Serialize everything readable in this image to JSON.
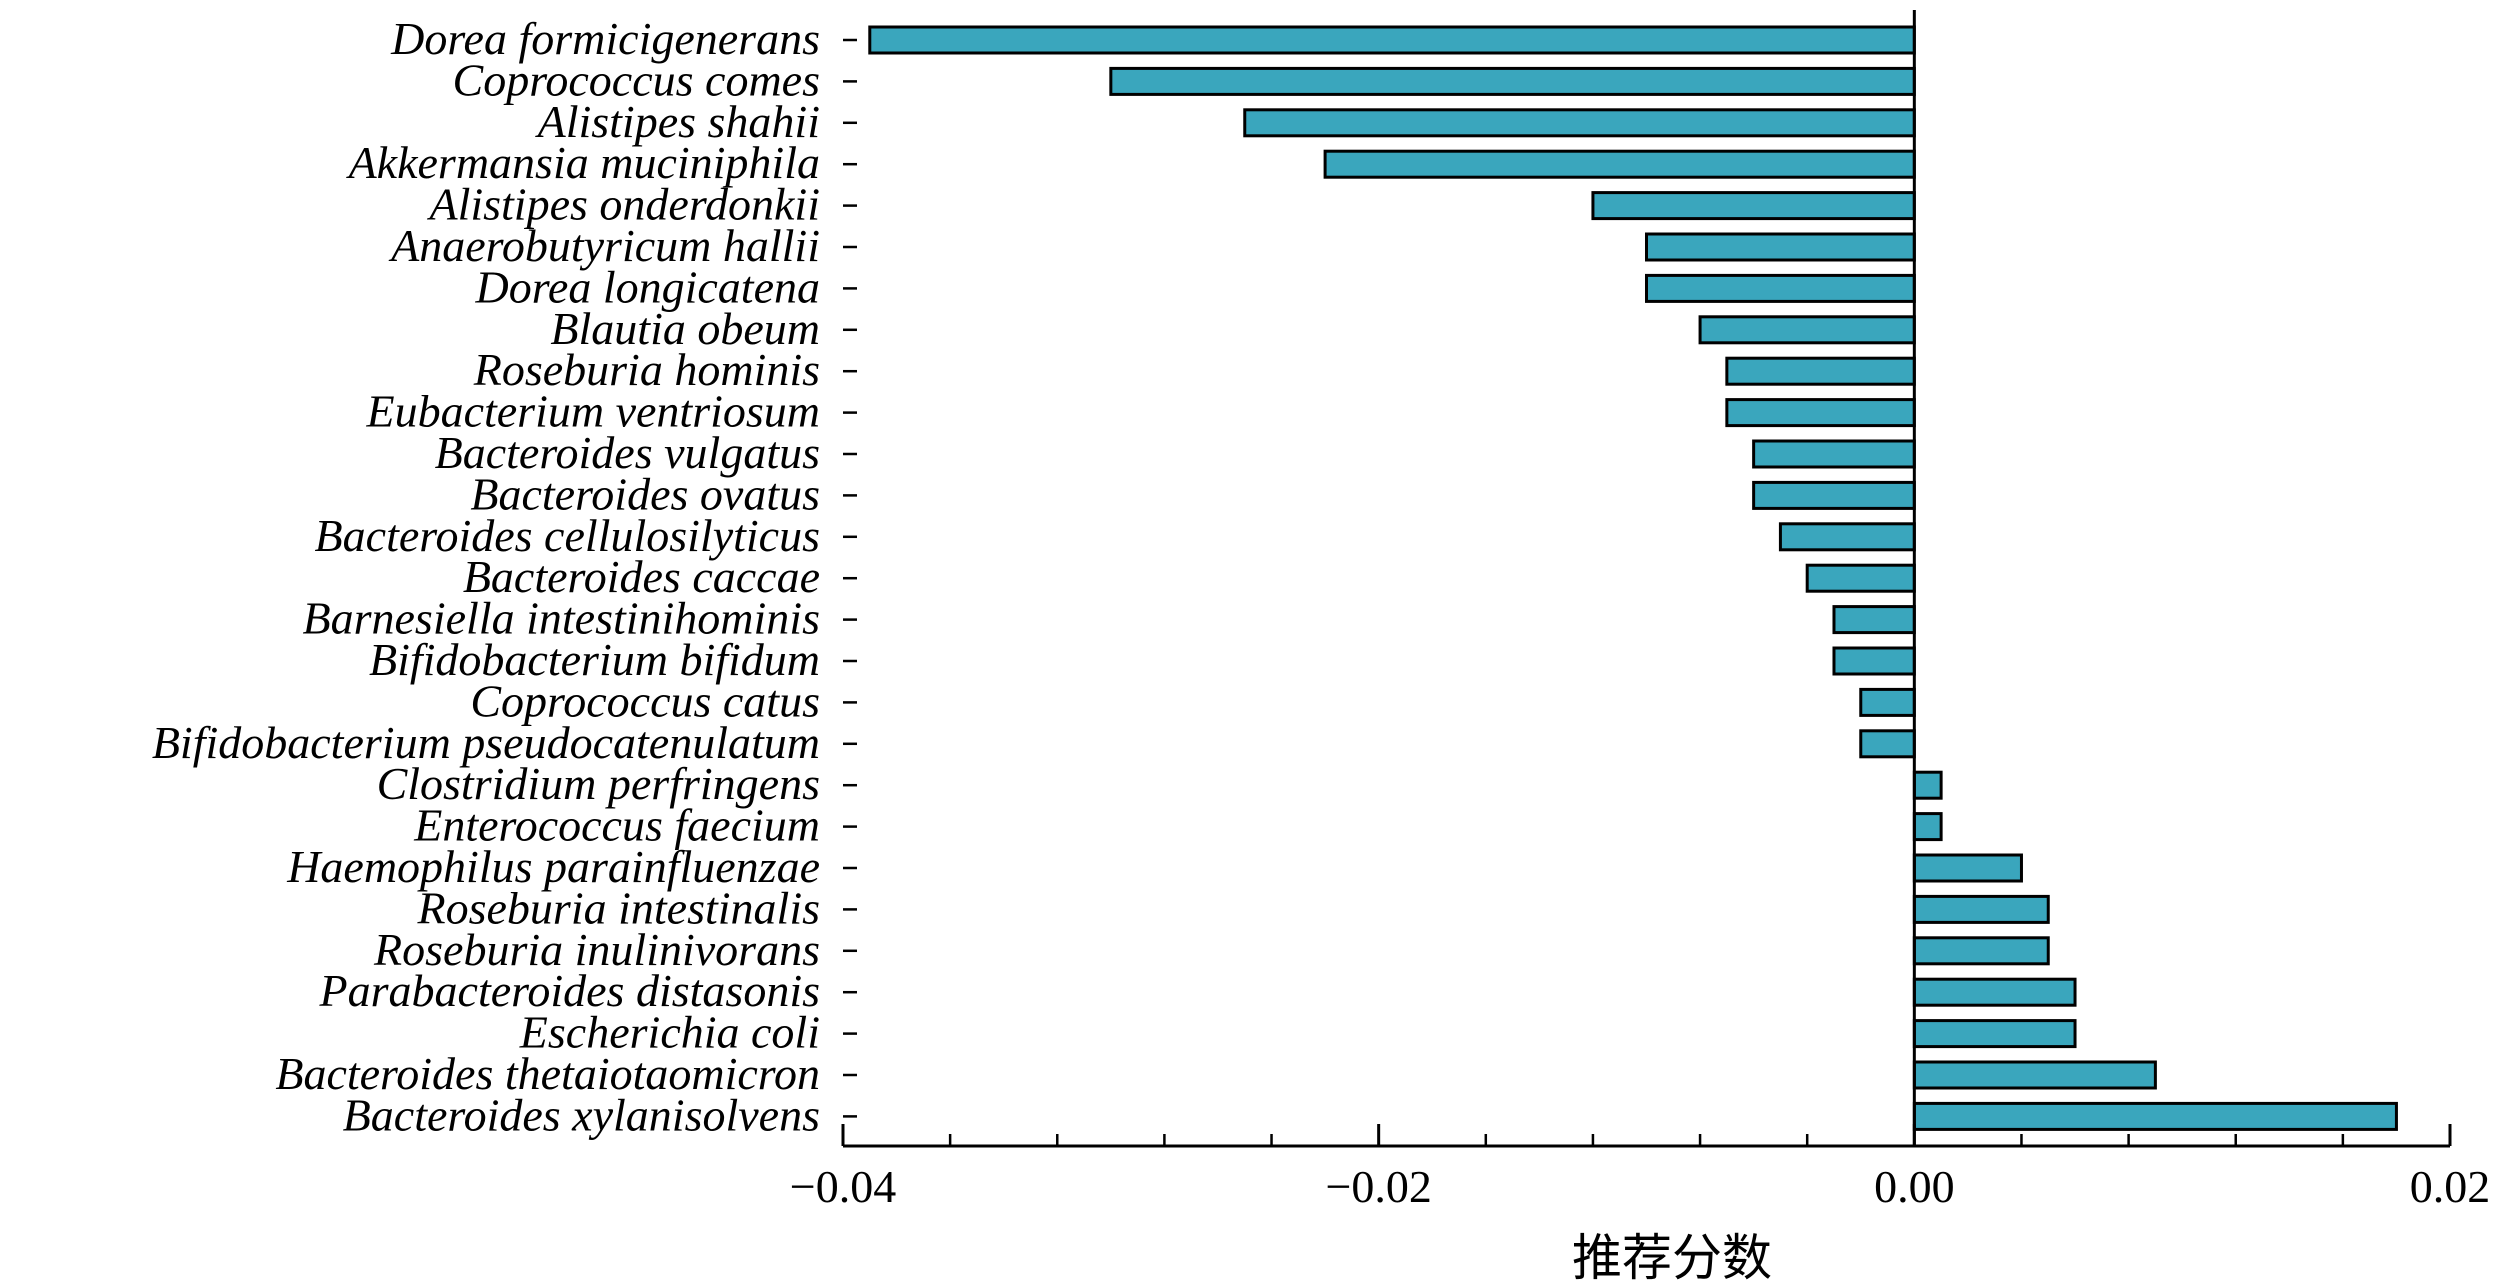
{
  "chart_data": {
    "type": "bar",
    "orientation": "horizontal",
    "title": "",
    "xlabel": "推荐分数",
    "ylabel": "",
    "xlim": [
      -0.04,
      0.02
    ],
    "xticks": [
      -0.04,
      -0.02,
      0.0,
      0.02
    ],
    "xtick_labels": [
      "−0.04",
      "−0.02",
      "0.00",
      "0.02"
    ],
    "grid": false,
    "legend": "none",
    "bar_color": "#3aa6bd",
    "bar_edge_color": "#000000",
    "categories": [
      "Dorea formicigenerans",
      "Coprococcus comes",
      "Alistipes shahii",
      "Akkermansia muciniphila",
      "Alistipes onderdonkii",
      "Anaerobutyricum hallii",
      "Dorea longicatena",
      "Blautia obeum",
      "Roseburia hominis",
      "Eubacterium ventriosum",
      "Bacteroides vulgatus",
      "Bacteroides ovatus",
      "Bacteroides cellulosilyticus",
      "Bacteroides caccae",
      "Barnesiella intestinihominis",
      "Bifidobacterium bifidum",
      "Coprococcus catus",
      "Bifidobacterium pseudocatenulatum",
      "Clostridium perfringens",
      "Enterococcus faecium",
      "Haemophilus parainfluenzae",
      "Roseburia intestinalis",
      "Roseburia inulinivorans",
      "Parabacteroides distasonis",
      "Escherichia coli",
      "Bacteroides thetaiotaomicron",
      "Bacteroides xylanisolvens"
    ],
    "values": [
      -0.039,
      -0.03,
      -0.025,
      -0.022,
      -0.012,
      -0.01,
      -0.01,
      -0.008,
      -0.007,
      -0.007,
      -0.006,
      -0.006,
      -0.005,
      -0.004,
      -0.003,
      -0.003,
      -0.002,
      -0.002,
      0.001,
      0.001,
      0.004,
      0.005,
      0.005,
      0.006,
      0.006,
      0.009,
      0.018
    ]
  }
}
